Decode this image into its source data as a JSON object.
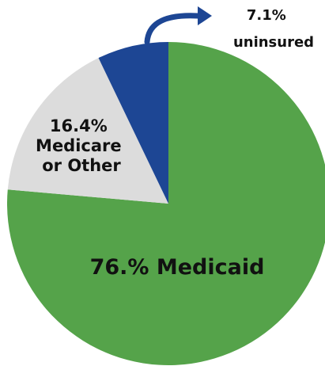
{
  "chart_data": {
    "type": "pie",
    "slices": [
      {
        "label": "Medicaid",
        "value": 76.0,
        "display": "76.% Medicaid",
        "color": "#55a34a"
      },
      {
        "label": "Medicare or Other",
        "value": 16.4,
        "display_lines": [
          "16.4%",
          "Medicare",
          "or Other"
        ],
        "color": "#dcdcdc"
      },
      {
        "label": "uninsured",
        "value": 7.1,
        "display_lines": [
          "7.1%",
          "uninsured"
        ],
        "color": "#1d4694"
      }
    ],
    "arrow_color": "#1d4694"
  }
}
